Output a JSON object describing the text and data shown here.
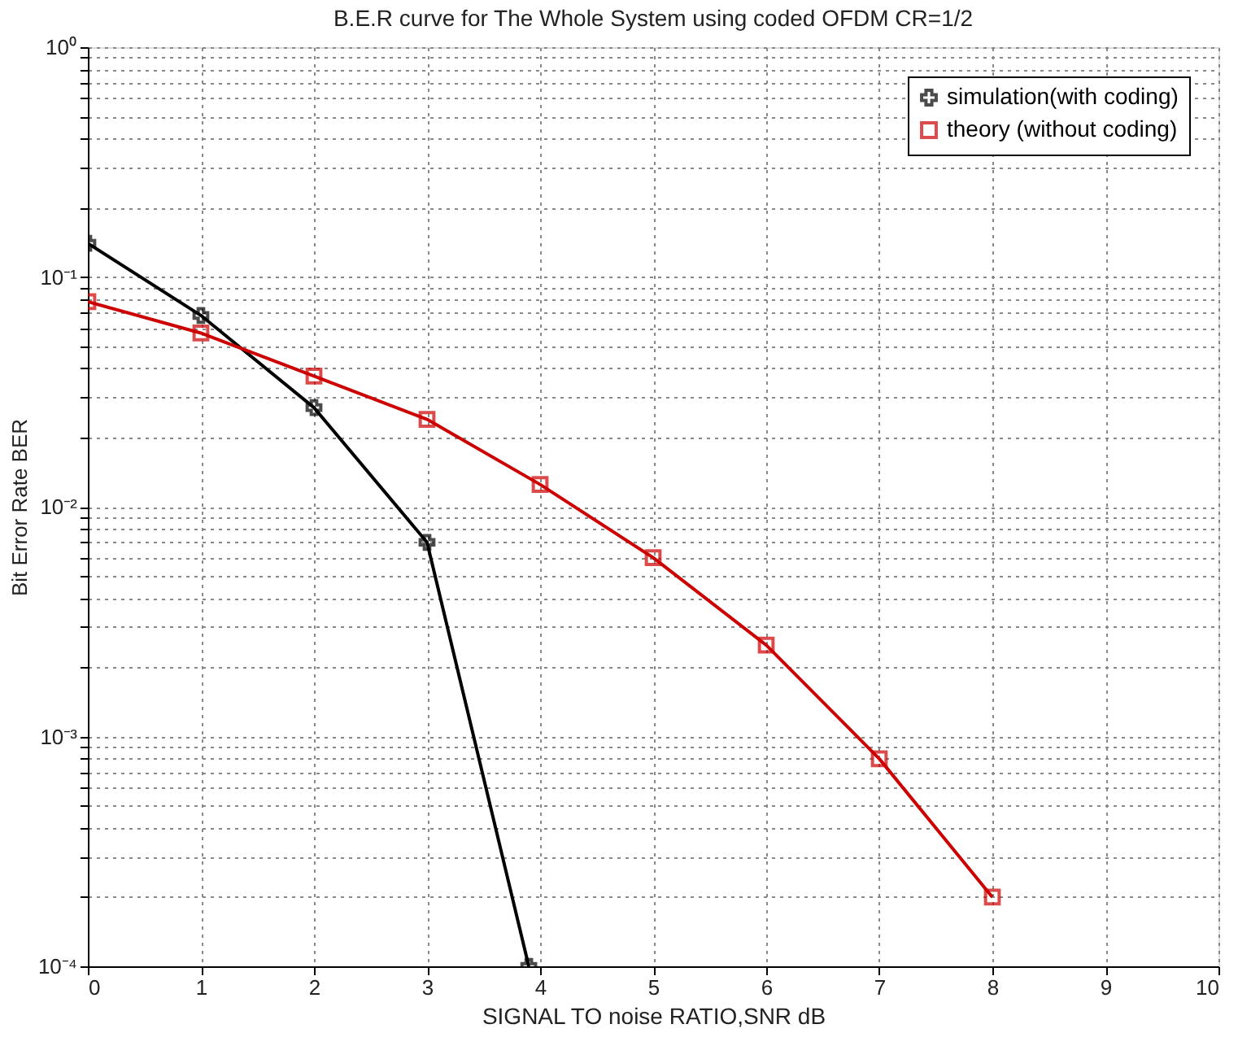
{
  "chart_data": {
    "type": "line",
    "title": "B.E.R curve for The Whole System using coded OFDM CR=1/2",
    "xlabel": "SIGNAL TO noise RATIO,SNR dB",
    "ylabel": "Bit Error Rate BER",
    "log": "y",
    "grid": true,
    "legend": "top right",
    "line_style": "solid",
    "xlim": [
      0,
      10
    ],
    "xticks": [
      0,
      1,
      2,
      3,
      4,
      5,
      6,
      7,
      8,
      9,
      10
    ],
    "ylim": [
      0.0001,
      1
    ],
    "yticks": [
      {
        "value": 0.0001,
        "label": "10⁻⁴"
      },
      {
        "value": 0.0002,
        "label": null
      },
      {
        "value": 0.0003,
        "label": null
      },
      {
        "value": 0.0004,
        "label": null
      },
      {
        "value": 0.0005,
        "label": null
      },
      {
        "value": 0.0006,
        "label": null
      },
      {
        "value": 0.0007,
        "label": null
      },
      {
        "value": 0.0008,
        "label": null
      },
      {
        "value": 0.0009,
        "label": null
      },
      {
        "value": 0.001,
        "label": "10⁻³"
      },
      {
        "value": 0.002,
        "label": null
      },
      {
        "value": 0.003,
        "label": null
      },
      {
        "value": 0.004,
        "label": null
      },
      {
        "value": 0.005,
        "label": null
      },
      {
        "value": 0.006,
        "label": null
      },
      {
        "value": 0.007,
        "label": null
      },
      {
        "value": 0.008,
        "label": null
      },
      {
        "value": 0.009,
        "label": null
      },
      {
        "value": 0.01,
        "label": "10⁻²"
      },
      {
        "value": 0.02,
        "label": null
      },
      {
        "value": 0.03,
        "label": null
      },
      {
        "value": 0.04,
        "label": null
      },
      {
        "value": 0.05,
        "label": null
      },
      {
        "value": 0.06,
        "label": null
      },
      {
        "value": 0.07,
        "label": null
      },
      {
        "value": 0.08,
        "label": null
      },
      {
        "value": 0.09,
        "label": null
      },
      {
        "value": 0.1,
        "label": "10⁻¹"
      },
      {
        "value": 0.2,
        "label": null
      },
      {
        "value": 0.3,
        "label": null
      },
      {
        "value": 0.4,
        "label": null
      },
      {
        "value": 0.5,
        "label": null
      },
      {
        "value": 0.6,
        "label": null
      },
      {
        "value": 0.7,
        "label": null
      },
      {
        "value": 0.8,
        "label": null
      },
      {
        "value": 0.9,
        "label": null
      },
      {
        "value": 1,
        "label": "10⁰"
      }
    ],
    "series": [
      {
        "name": "simulation(with coding)",
        "color": "#000000",
        "marker": "cross",
        "x": [
          0,
          1,
          2,
          3,
          3.9
        ],
        "values": [
          0.14,
          0.068,
          0.027,
          0.007,
          0.0001
        ]
      },
      {
        "name": "theory (without coding)",
        "color": "#cc0000",
        "marker": "square",
        "x": [
          0,
          1,
          2,
          3,
          4,
          5,
          6,
          7,
          8
        ],
        "values": [
          0.078,
          0.057,
          0.037,
          0.024,
          0.0125,
          0.006,
          0.0025,
          0.0008,
          0.0002
        ]
      }
    ]
  }
}
